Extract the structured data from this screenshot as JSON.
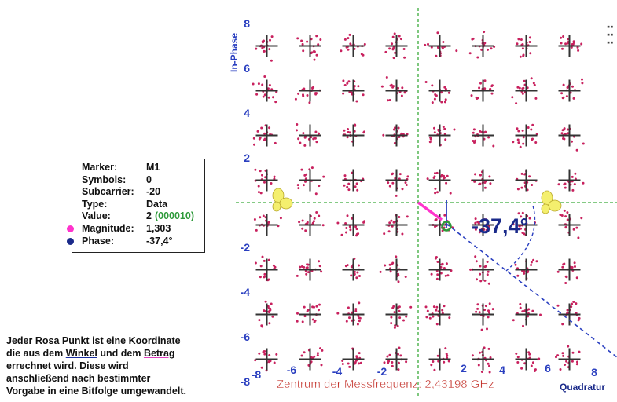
{
  "chart_data": {
    "type": "scatter",
    "title": "",
    "xlabel": "Quadratur",
    "ylabel": "In-Phase",
    "xlim": [
      -8.5,
      8.5
    ],
    "ylim": [
      -8.5,
      8.5
    ],
    "x_ticks": [
      -8,
      -6,
      -4,
      -2,
      2,
      4,
      6,
      8
    ],
    "y_ticks": [
      8,
      6,
      4,
      2,
      -2,
      -4,
      -6,
      -8
    ],
    "grid": false,
    "constellation_x": [
      -7,
      -5,
      -3,
      -1,
      1,
      3,
      5,
      7
    ],
    "constellation_y": [
      7,
      5,
      3,
      1,
      -1,
      -3,
      -5,
      -7
    ],
    "point_color": "#c8215e",
    "axis_color": "#3aaa3a",
    "highlight_point": {
      "x": 1,
      "y": -1
    },
    "angle_label": "-37,4°",
    "center_label": "Zentrum der Messfrequenz: 2,43198 GHz"
  },
  "marker_box": {
    "rows": [
      {
        "key": "Marker:",
        "value": "M1"
      },
      {
        "key": "Symbols:",
        "value": "0"
      },
      {
        "key": "Subcarrier:",
        "value": "-20"
      },
      {
        "key": "Type:",
        "value": "Data"
      },
      {
        "key": "Value:",
        "value": "2",
        "extra": "(000010)"
      },
      {
        "key": "Magnitude:",
        "value": "1,303"
      },
      {
        "key": "Phase:",
        "value": "-37,4°"
      }
    ],
    "magnitude_color": "#ff33cc",
    "phase_color": "#1a2a8a"
  },
  "description": {
    "t1": "Jeder Rosa Punkt ist eine Koordinate",
    "t2a": "die aus dem ",
    "t2b": "Winkel",
    "t2c": " und dem ",
    "t2d": "Betrag",
    "t3": "errechnet wird. Diese wird",
    "t4": "anschließend nach bestimmter",
    "t5": "Vorgabe in eine Bitfolge umgewandelt."
  }
}
